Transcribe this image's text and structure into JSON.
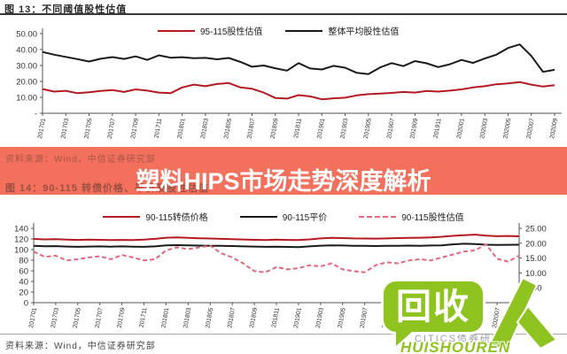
{
  "chart13": {
    "title": "图 13：不同阈值股性估值",
    "source": "资料来源：Wind，中信证券研究部",
    "legend": [
      "95-115股性估值",
      "整体平均股性估值"
    ]
  },
  "banner": {
    "headline": "塑料HIPS市场走势深度解析",
    "bg_color": "#f2705c"
  },
  "chart14": {
    "title": "图 14：90-115 转债价格、平价及股性估值",
    "source": "资料来源：Wind，中信证券研究部",
    "legend": [
      "90-115转债价格",
      "90-115平价",
      "90-115股性估值"
    ]
  },
  "watermark": {
    "logo_text": "回收",
    "logo_subtext": "HUISHOUREN",
    "gray_text": "CITICS债券研究",
    "green": "#8fc31f"
  },
  "colors": {
    "red": "#b51a22",
    "black": "#1a1a1a",
    "pink": "#e2697d",
    "banner": "#f2705c"
  },
  "chart_data": [
    {
      "type": "line",
      "title": "图 13：不同阈值股性估值",
      "legend_position": "top",
      "grid": false,
      "ylim": [
        0,
        50
      ],
      "y_ticks": [
        "50.00",
        "40.00",
        "30.00",
        "20.00",
        "10.00",
        "-"
      ],
      "x_labels": [
        "201701",
        "201703",
        "201705",
        "201707",
        "201709",
        "201711",
        "201801",
        "201803",
        "201805",
        "201807",
        "201809",
        "201811",
        "201901",
        "201903",
        "201905",
        "201907",
        "201909",
        "201911",
        "202001",
        "202003",
        "202005",
        "202007",
        "202009"
      ],
      "series": [
        {
          "name": "95-115股性估值",
          "color": "#b51a22",
          "style": "solid",
          "values": [
            15.2,
            13.6,
            14.1,
            12.6,
            13.2,
            14.0,
            14.6,
            13.4,
            15.0,
            14.2,
            13.0,
            12.6,
            16.2,
            18.0,
            17.0,
            18.4,
            19.0,
            16.2,
            15.4,
            13.0,
            9.6,
            9.2,
            11.4,
            10.6,
            8.8,
            9.4,
            9.8,
            11.2,
            12.0,
            12.4,
            12.8,
            13.4,
            13.0,
            14.0,
            13.6,
            14.2,
            15.0,
            16.2,
            17.0,
            18.2,
            18.8,
            19.6,
            18.0,
            16.8,
            17.6
          ]
        },
        {
          "name": "整体平均股性估值",
          "color": "#1a1a1a",
          "style": "solid",
          "values": [
            38.5,
            36.8,
            35.4,
            34.0,
            32.5,
            34.2,
            35.3,
            34.1,
            35.7,
            33.5,
            36.4,
            34.9,
            35.2,
            34.6,
            34.8,
            33.9,
            34.7,
            32.3,
            29.2,
            30.0,
            28.3,
            26.8,
            31.5,
            28.1,
            27.5,
            29.8,
            28.6,
            25.4,
            24.6,
            28.8,
            31.5,
            29.6,
            32.8,
            31.4,
            29.0,
            30.8,
            33.5,
            31.6,
            34.4,
            36.8,
            41.0,
            43.2,
            36.0,
            26.0,
            27.3
          ]
        }
      ]
    },
    {
      "type": "line",
      "title": "图 14：90-115 转债价格、平价及股性估值",
      "legend_position": "top",
      "grid": false,
      "ylim_left": [
        0,
        140
      ],
      "ylim_right": [
        0,
        25
      ],
      "y_ticks_left": [
        "140",
        "120",
        "100",
        "80",
        "60",
        "40",
        "20",
        "0"
      ],
      "y_ticks_right": [
        "25.00",
        "20.00",
        "15.00",
        "10.00",
        "5.00",
        "-"
      ],
      "x_labels": [
        "201701",
        "201703",
        "201705",
        "201707",
        "201709",
        "201711",
        "201801",
        "201803",
        "201805",
        "201807",
        "201809",
        "201811",
        "201901",
        "201903",
        "201905",
        "201907",
        "201909",
        "201911",
        "202001",
        "202003",
        "202005",
        "202007",
        "202009"
      ],
      "series": [
        {
          "name": "90-115转债价格",
          "axis": "left",
          "color": "#b51a22",
          "style": "solid",
          "values": [
            120.0,
            119.2,
            119.5,
            118.6,
            118.2,
            118.8,
            118.3,
            117.8,
            118.2,
            118.0,
            118.6,
            120.2,
            122.4,
            123.0,
            122.2,
            121.4,
            120.8,
            120.2,
            119.6,
            119.0,
            118.4,
            118.0,
            118.6,
            118.2,
            117.8,
            119.2,
            121.0,
            122.2,
            121.6,
            121.0,
            120.8,
            120.6,
            121.0,
            121.6,
            122.0,
            122.4,
            123.0,
            124.2,
            125.8,
            127.0,
            128.2,
            126.4,
            125.2,
            125.6,
            125.0
          ]
        },
        {
          "name": "90-115平价",
          "axis": "left",
          "color": "#1a1a1a",
          "style": "solid",
          "values": [
            107.0,
            106.2,
            106.5,
            105.6,
            105.2,
            105.6,
            106.0,
            105.5,
            106.0,
            105.5,
            105.2,
            106.0,
            108.0,
            108.4,
            108.0,
            107.5,
            107.2,
            107.0,
            106.6,
            106.0,
            105.6,
            105.2,
            105.5,
            105.0,
            104.6,
            106.0,
            107.4,
            108.0,
            107.6,
            107.2,
            107.0,
            106.6,
            107.0,
            107.2,
            107.5,
            107.2,
            107.6,
            108.0,
            109.8,
            111.0,
            110.4,
            109.2,
            108.6,
            109.0,
            109.2
          ]
        },
        {
          "name": "90-115股性估值",
          "axis": "right",
          "color": "#e2697d",
          "style": "dashed",
          "values": [
            17.2,
            15.4,
            15.8,
            14.2,
            14.6,
            15.2,
            15.6,
            14.6,
            16.0,
            15.2,
            14.2,
            14.6,
            17.6,
            18.6,
            18.0,
            18.6,
            19.2,
            16.6,
            15.2,
            13.2,
            10.6,
            10.2,
            12.0,
            11.2,
            11.6,
            12.6,
            12.2,
            13.2,
            11.2,
            10.6,
            10.2,
            12.6,
            13.6,
            13.2,
            14.2,
            14.6,
            14.2,
            15.2,
            16.2,
            17.2,
            17.6,
            19.6,
            14.8,
            13.8,
            15.8
          ]
        }
      ]
    }
  ]
}
